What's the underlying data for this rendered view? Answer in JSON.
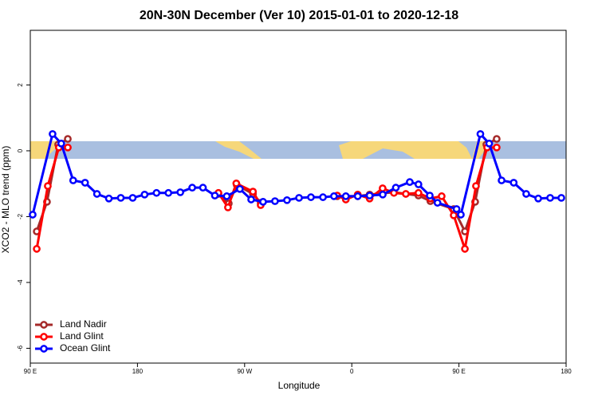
{
  "chart_data": {
    "type": "line",
    "title": "20N-30N December (Ver 10)   2015-01-01 to 2020-12-18",
    "x_label": "Longitude",
    "y_label": "XCO2 - MLO trend (ppm)",
    "xlim": [
      90,
      540
    ],
    "ylim": [
      -6.45,
      3.66
    ],
    "xticks": [
      {
        "value": 90,
        "label": "90 E"
      },
      {
        "value": 180,
        "label": "180"
      },
      {
        "value": 270,
        "label": "90 W"
      },
      {
        "value": 360,
        "label": "0"
      },
      {
        "value": 450,
        "label": "90 E"
      },
      {
        "value": 540,
        "label": "180"
      }
    ],
    "yticks": [
      2,
      0,
      -2,
      -4,
      -6
    ],
    "legend": "bottomleft",
    "series": [
      {
        "name": "Land Nadir",
        "color": "#a52a2a",
        "x": [
          95.4,
          104,
          113.4,
          121.5,
          null,
          248,
          256.7,
          263.4,
          277,
          283.5,
          null,
          347.8,
          365,
          375,
          395.4,
          416,
          426,
          445.6,
          455,
          463.6,
          473,
          481.7
        ],
        "values": [
          -2.45,
          -1.55,
          0.19,
          0.36,
          null,
          -1.31,
          -1.6,
          -1.04,
          -1.31,
          -1.58,
          null,
          -1.38,
          -1.38,
          -1.33,
          -1.26,
          -1.36,
          -1.53,
          -1.77,
          -2.45,
          -1.55,
          0.19,
          0.36
        ]
      },
      {
        "name": "Land Glint",
        "color": "#ff0000",
        "x": [
          95.4,
          104.7,
          114,
          121.5,
          null,
          248,
          256,
          263,
          277,
          283.5,
          null,
          347.8,
          355,
          365,
          375,
          385.9,
          395.4,
          405.4,
          416,
          426,
          435.5,
          445.6,
          455,
          464.3,
          473.7,
          481.7
        ],
        "values": [
          -2.98,
          -1.07,
          0.1,
          0.1,
          null,
          -1.28,
          -1.72,
          -0.99,
          -1.24,
          -1.65,
          null,
          -1.36,
          -1.48,
          -1.33,
          -1.45,
          -1.14,
          -1.28,
          -1.31,
          -1.28,
          -1.45,
          -1.38,
          -1.96,
          -2.98,
          -1.07,
          0.1,
          0.1
        ]
      },
      {
        "name": "Ocean Glint",
        "color": "#0000ff",
        "x": [
          92,
          108.7,
          116,
          126,
          136,
          146,
          156,
          166,
          176,
          186,
          196,
          206,
          216,
          226,
          235,
          245,
          255,
          266,
          275.5,
          285.5,
          295.5,
          305.6,
          315.7,
          325.7,
          335.8,
          345,
          355,
          365,
          375,
          386,
          397,
          408.7,
          416,
          425.5,
          432,
          448,
          451.6,
          468,
          475.4,
          485.8,
          496,
          506.5,
          516.6,
          526.6,
          536
        ],
        "values": [
          -1.94,
          0.51,
          0.22,
          -0.9,
          -0.97,
          -1.31,
          -1.45,
          -1.43,
          -1.43,
          -1.33,
          -1.28,
          -1.28,
          -1.26,
          -1.12,
          -1.12,
          -1.36,
          -1.38,
          -1.16,
          -1.48,
          -1.55,
          -1.53,
          -1.5,
          -1.43,
          -1.41,
          -1.41,
          -1.38,
          -1.38,
          -1.38,
          -1.36,
          -1.33,
          -1.12,
          -0.95,
          -1.02,
          -1.36,
          -1.58,
          -1.77,
          -1.94,
          0.51,
          0.22,
          -0.9,
          -0.97,
          -1.31,
          -1.45,
          -1.43,
          -1.43
        ]
      }
    ]
  }
}
